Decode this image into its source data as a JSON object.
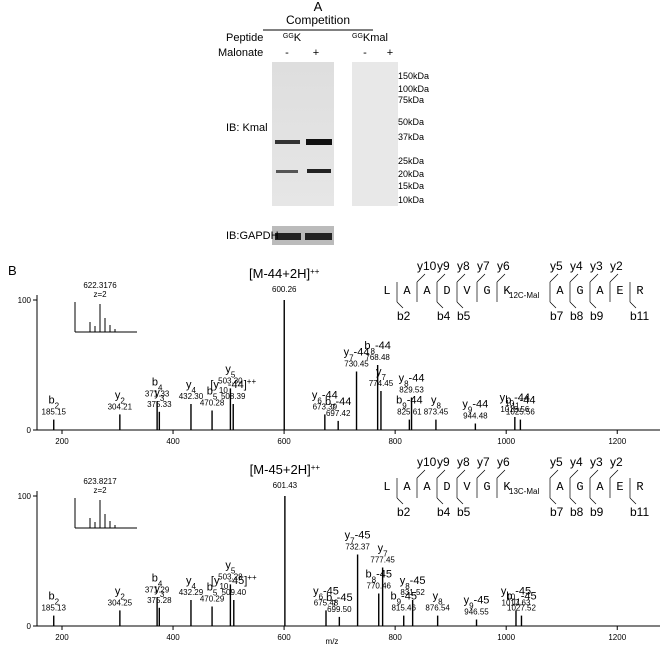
{
  "panel_a": {
    "label": "A",
    "competition": "Competition",
    "peptide_label": "Peptide",
    "malonate_label": "Malonate",
    "peptides": [
      {
        "sup": "GG",
        "text": "K"
      },
      {
        "sup": "GG",
        "text": "Kmal"
      }
    ],
    "lanes": [
      "-",
      "+",
      "-",
      "+"
    ],
    "markers": [
      "150kDa",
      "100kDa",
      "75kDa",
      "50kDa",
      "37kDa",
      "25kDa",
      "20kDa",
      "15kDa",
      "10kDa"
    ],
    "ib_kmal": "IB: Kmal",
    "ib_gapdh": "IB:GAPDH"
  },
  "panel_b": {
    "label": "B",
    "x_label": "m/z",
    "spectra": [
      {
        "type": "spectrum",
        "xlim": [
          155,
          1277
        ],
        "ylim": [
          0,
          100
        ],
        "xticks": [
          200,
          400,
          600,
          800,
          1000,
          1200
        ],
        "yticks": [
          0,
          100
        ],
        "inset": {
          "mz": "622.3176",
          "z": "z=2"
        },
        "sequence": {
          "residues": [
            "L",
            "A",
            "A",
            "D",
            "V",
            "G",
            "K",
            "A",
            "G",
            "A",
            "E",
            "R"
          ],
          "mod": "12C-Mal",
          "y_ions": [
            "y10",
            "y9",
            "y8",
            "y7",
            "y6",
            "y5",
            "y4",
            "y3",
            "y2"
          ],
          "b_ions": [
            "b2",
            "b4",
            "b5",
            "b7",
            "b8",
            "b9",
            "b11"
          ]
        },
        "peaks": [
          {
            "base": "[M-44+2H]",
            "sup": "++",
            "mz": 600.26,
            "intensity": 100
          },
          {
            "base": "b",
            "sub": "2",
            "mz": 185.15,
            "intensity": 8
          },
          {
            "base": "y",
            "sub": "2",
            "mz": 304.21,
            "intensity": 12
          },
          {
            "base": "b",
            "sub": "4",
            "mz": 371.33,
            "intensity": 22
          },
          {
            "base": "y",
            "sub": "3",
            "mz": 375.33,
            "intensity": 14
          },
          {
            "base": "y",
            "sub": "4",
            "mz": 432.3,
            "mz_label": "432.30",
            "intensity": 20
          },
          {
            "base": "b",
            "sub": "5",
            "mz": 470.28,
            "intensity": 15
          },
          {
            "base": "y",
            "sub": "5",
            "mz": 503.3,
            "mz_label": "503.30",
            "intensity": 32
          },
          {
            "base": "[y",
            "sub": "10",
            "tail": "-44]",
            "sup": "++",
            "mz": 508.39,
            "intensity": 20
          },
          {
            "base": "y",
            "sub": "6",
            "tail": "-44",
            "mz": 673.39,
            "intensity": 12
          },
          {
            "base": "b",
            "sub": "7",
            "tail": "-44",
            "mz": 697.42,
            "intensity": 7
          },
          {
            "base": "y",
            "sub": "7",
            "tail": "-44",
            "mz": 730.45,
            "intensity": 45
          },
          {
            "base": "b",
            "sub": "8",
            "tail": "-44",
            "mz": 768.48,
            "intensity": 50
          },
          {
            "base": "y",
            "sub": "7",
            "mz": 774.45,
            "intensity": 30
          },
          {
            "base": "b",
            "sub": "9",
            "tail": "-44",
            "mz": 825.61,
            "intensity": 8
          },
          {
            "base": "y",
            "sub": "8",
            "tail": "-44",
            "mz": 829.53,
            "intensity": 25
          },
          {
            "base": "y",
            "sub": "8",
            "mz": 873.45,
            "intensity": 8
          },
          {
            "base": "y",
            "sub": "9",
            "tail": "-44",
            "mz": 944.48,
            "intensity": 5
          },
          {
            "base": "y",
            "sub": "10",
            "tail": "-44",
            "mz": 1015.56,
            "intensity": 10
          },
          {
            "base": "b",
            "sub": "11",
            "tail": "-44",
            "mz": 1025.56,
            "intensity": 8
          }
        ]
      },
      {
        "type": "spectrum",
        "xlim": [
          155,
          1277
        ],
        "ylim": [
          0,
          100
        ],
        "xticks": [
          200,
          400,
          600,
          800,
          1000,
          1200
        ],
        "yticks": [
          0,
          100
        ],
        "inset": {
          "mz": "623.8217",
          "z": "z=2"
        },
        "sequence": {
          "residues": [
            "L",
            "A",
            "A",
            "D",
            "V",
            "G",
            "K",
            "A",
            "G",
            "A",
            "E",
            "R"
          ],
          "mod": "13C-Mal",
          "y_ions": [
            "y10",
            "y9",
            "y8",
            "y7",
            "y6",
            "y5",
            "y4",
            "y3",
            "y2"
          ],
          "b_ions": [
            "b2",
            "b4",
            "b5",
            "b7",
            "b8",
            "b9",
            "b11"
          ]
        },
        "peaks": [
          {
            "base": "[M-45+2H]",
            "sup": "++",
            "mz": 601.43,
            "intensity": 100
          },
          {
            "base": "b",
            "sub": "2",
            "mz": 185.13,
            "intensity": 8
          },
          {
            "base": "y",
            "sub": "2",
            "mz": 304.25,
            "intensity": 12
          },
          {
            "base": "b",
            "sub": "4",
            "mz": 371.29,
            "intensity": 22
          },
          {
            "base": "y",
            "sub": "3",
            "mz": 375.28,
            "intensity": 14
          },
          {
            "base": "y",
            "sub": "4",
            "mz": 432.29,
            "intensity": 20
          },
          {
            "base": "b",
            "sub": "5",
            "mz": 470.29,
            "intensity": 15
          },
          {
            "base": "y",
            "sub": "5",
            "mz": 503.28,
            "intensity": 32
          },
          {
            "base": "[y",
            "sub": "10",
            "tail": "-45]",
            "sup": "++",
            "mz": 509.4,
            "mz_label": "509.40",
            "intensity": 20
          },
          {
            "base": "y",
            "sub": "6",
            "tail": "-45",
            "mz": 675.48,
            "intensity": 12
          },
          {
            "base": "b",
            "sub": "7",
            "tail": "-45",
            "mz": 699.5,
            "mz_label": "699.50",
            "intensity": 7
          },
          {
            "base": "y",
            "sub": "7",
            "tail": "-45",
            "mz": 732.37,
            "intensity": 55
          },
          {
            "base": "y",
            "sub": "7",
            "mz": 777.45,
            "intensity": 45
          },
          {
            "base": "b",
            "sub": "8",
            "tail": "-45",
            "mz": 770.46,
            "intensity": 25
          },
          {
            "base": "b",
            "sub": "9",
            "tail": "-45",
            "mz": 815.46,
            "intensity": 8
          },
          {
            "base": "y",
            "sub": "8",
            "tail": "-45",
            "mz": 831.52,
            "intensity": 20
          },
          {
            "base": "y",
            "sub": "8",
            "mz": 876.54,
            "intensity": 8
          },
          {
            "base": "y",
            "sub": "9",
            "tail": "-45",
            "mz": 946.55,
            "intensity": 5
          },
          {
            "base": "y",
            "sub": "10",
            "tail": "-45",
            "mz": 1017.63,
            "intensity": 12
          },
          {
            "base": "b",
            "sub": "11",
            "tail": "-45",
            "mz": 1027.52,
            "intensity": 8
          }
        ]
      }
    ]
  }
}
